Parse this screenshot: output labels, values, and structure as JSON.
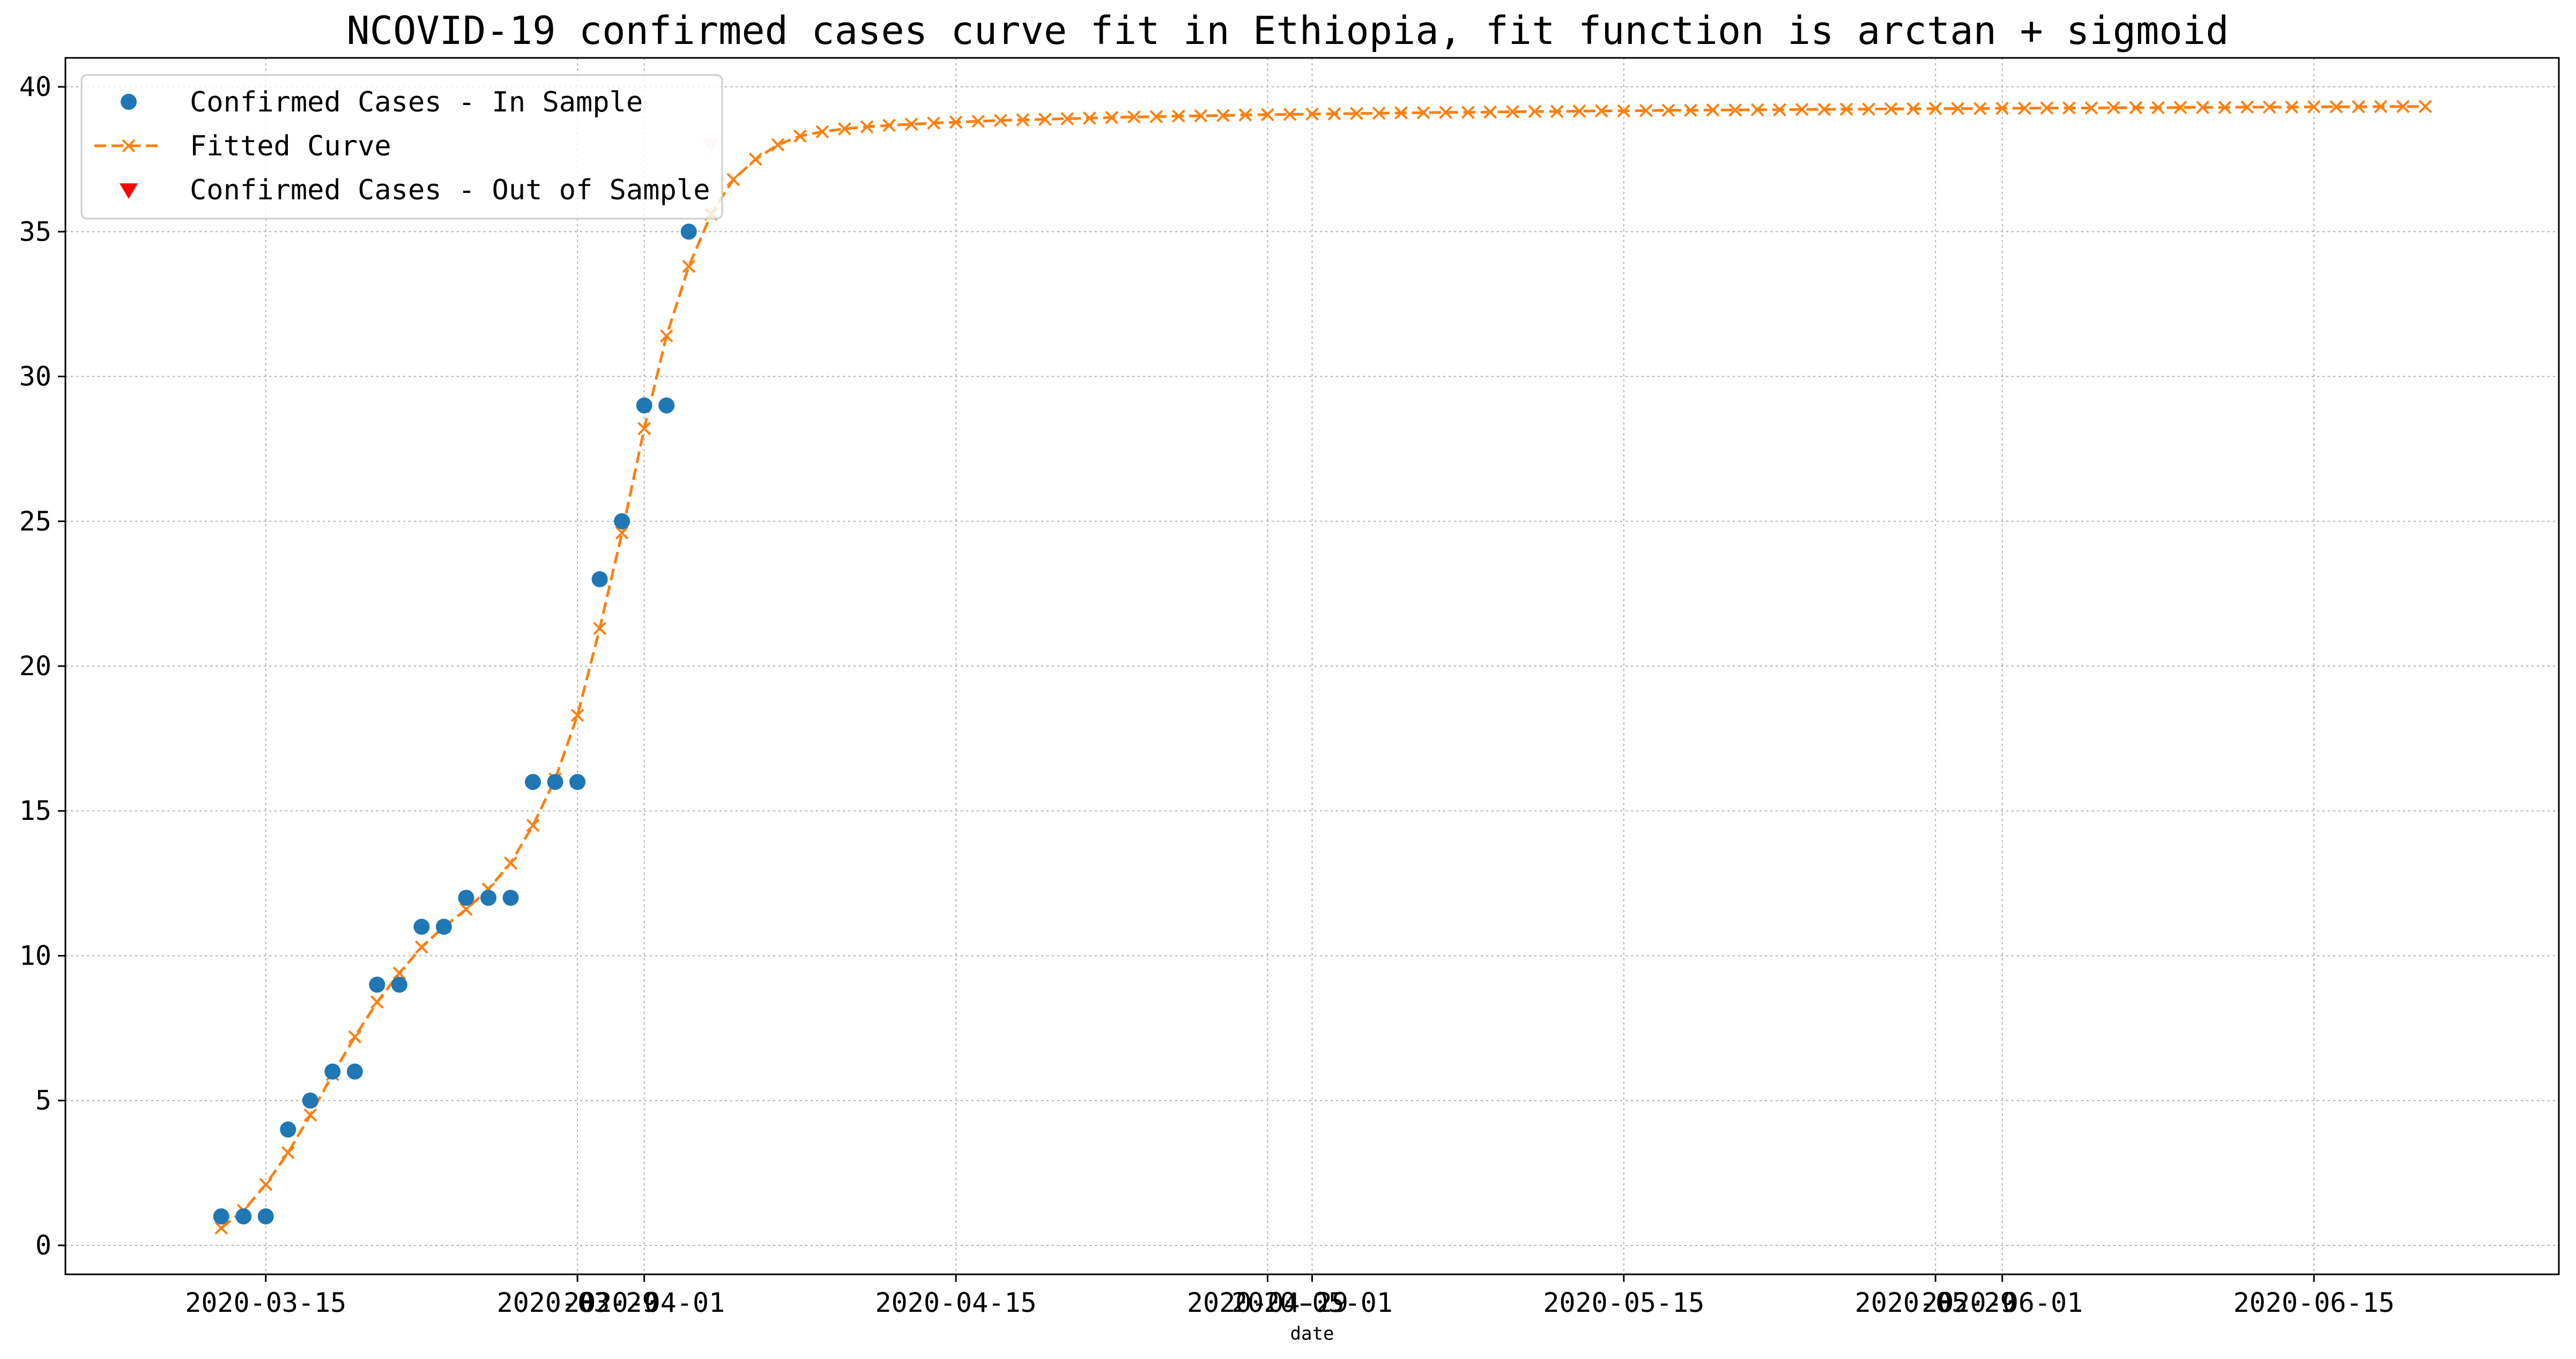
{
  "chart_data": {
    "type": "line",
    "title": "NCOVID-19 confirmed cases curve fit in Ethiopia, fit function is arctan + sigmoid",
    "xlabel": "date",
    "ylabel": "",
    "x_axis_type": "date",
    "xlim": [
      "2020-03-06",
      "2020-06-26"
    ],
    "ylim": [
      -1,
      41
    ],
    "grid": true,
    "legend_position": "top-left",
    "colors": {
      "in_sample": "#1f77b4",
      "fitted": "#ff7f0e",
      "out_of_sample": "#ff0000",
      "grid": "#b0b0b0"
    },
    "x_ticks": [
      {
        "date": "2020-03-15",
        "label": "2020-03-15"
      },
      {
        "date": "2020-03-29",
        "label": "2020-03-29"
      },
      {
        "date": "2020-04-01",
        "label": "2020-04-01"
      },
      {
        "date": "2020-04-15",
        "label": "2020-04-15"
      },
      {
        "date": "2020-04-29",
        "label": "2020-04-29"
      },
      {
        "date": "2020-05-01",
        "label": "2020-05-01"
      },
      {
        "date": "2020-05-15",
        "label": "2020-05-15"
      },
      {
        "date": "2020-05-29",
        "label": "2020-05-29"
      },
      {
        "date": "2020-06-01",
        "label": "2020-06-01"
      },
      {
        "date": "2020-06-15",
        "label": "2020-06-15"
      }
    ],
    "y_ticks": [
      0,
      5,
      10,
      15,
      20,
      25,
      30,
      35,
      40
    ],
    "series": [
      {
        "name": "Confirmed Cases - In Sample",
        "style": "marker-circle",
        "points": [
          [
            "2020-03-13",
            1
          ],
          [
            "2020-03-14",
            1
          ],
          [
            "2020-03-15",
            1
          ],
          [
            "2020-03-16",
            4
          ],
          [
            "2020-03-17",
            5
          ],
          [
            "2020-03-18",
            6
          ],
          [
            "2020-03-19",
            6
          ],
          [
            "2020-03-20",
            9
          ],
          [
            "2020-03-21",
            9
          ],
          [
            "2020-03-22",
            11
          ],
          [
            "2020-03-23",
            11
          ],
          [
            "2020-03-24",
            12
          ],
          [
            "2020-03-25",
            12
          ],
          [
            "2020-03-26",
            12
          ],
          [
            "2020-03-27",
            16
          ],
          [
            "2020-03-28",
            16
          ],
          [
            "2020-03-29",
            16
          ],
          [
            "2020-03-30",
            23
          ],
          [
            "2020-03-31",
            25
          ],
          [
            "2020-04-01",
            29
          ],
          [
            "2020-04-02",
            29
          ],
          [
            "2020-04-03",
            35
          ]
        ]
      },
      {
        "name": "Fitted Curve",
        "style": "dashed-line-x",
        "points": [
          [
            "2020-03-13",
            0.6
          ],
          [
            "2020-03-14",
            1.2
          ],
          [
            "2020-03-15",
            2.1
          ],
          [
            "2020-03-16",
            3.2
          ],
          [
            "2020-03-17",
            4.5
          ],
          [
            "2020-03-18",
            5.9
          ],
          [
            "2020-03-19",
            7.2
          ],
          [
            "2020-03-20",
            8.4
          ],
          [
            "2020-03-21",
            9.4
          ],
          [
            "2020-03-22",
            10.3
          ],
          [
            "2020-03-23",
            11.0
          ],
          [
            "2020-03-24",
            11.6
          ],
          [
            "2020-03-25",
            12.3
          ],
          [
            "2020-03-26",
            13.2
          ],
          [
            "2020-03-27",
            14.5
          ],
          [
            "2020-03-28",
            16.1
          ],
          [
            "2020-03-29",
            18.3
          ],
          [
            "2020-03-30",
            21.3
          ],
          [
            "2020-03-31",
            24.6
          ],
          [
            "2020-04-01",
            28.2
          ],
          [
            "2020-04-02",
            31.4
          ],
          [
            "2020-04-03",
            33.8
          ],
          [
            "2020-04-04",
            35.6
          ],
          [
            "2020-04-05",
            36.8
          ],
          [
            "2020-04-06",
            37.5
          ],
          [
            "2020-04-07",
            38.0
          ],
          [
            "2020-04-08",
            38.3
          ],
          [
            "2020-04-09",
            38.45
          ],
          [
            "2020-04-10",
            38.55
          ],
          [
            "2020-04-11",
            38.62
          ],
          [
            "2020-04-12",
            38.67
          ],
          [
            "2020-04-13",
            38.71
          ],
          [
            "2020-04-14",
            38.75
          ],
          [
            "2020-04-15",
            38.78
          ],
          [
            "2020-04-16",
            38.81
          ],
          [
            "2020-04-17",
            38.84
          ],
          [
            "2020-04-18",
            38.86
          ],
          [
            "2020-04-19",
            38.88
          ],
          [
            "2020-04-20",
            38.9
          ],
          [
            "2020-04-21",
            38.92
          ],
          [
            "2020-04-22",
            38.94
          ],
          [
            "2020-04-23",
            38.96
          ],
          [
            "2020-04-24",
            38.97
          ],
          [
            "2020-04-25",
            38.99
          ],
          [
            "2020-04-26",
            39.0
          ],
          [
            "2020-04-27",
            39.01
          ],
          [
            "2020-04-28",
            39.03
          ],
          [
            "2020-04-29",
            39.04
          ],
          [
            "2020-04-30",
            39.05
          ],
          [
            "2020-05-01",
            39.06
          ],
          [
            "2020-05-02",
            39.07
          ],
          [
            "2020-05-03",
            39.08
          ],
          [
            "2020-05-04",
            39.09
          ],
          [
            "2020-05-05",
            39.1
          ],
          [
            "2020-05-06",
            39.11
          ],
          [
            "2020-05-07",
            39.12
          ],
          [
            "2020-05-08",
            39.12
          ],
          [
            "2020-05-09",
            39.13
          ],
          [
            "2020-05-10",
            39.14
          ],
          [
            "2020-05-11",
            39.15
          ],
          [
            "2020-05-12",
            39.15
          ],
          [
            "2020-05-13",
            39.16
          ],
          [
            "2020-05-14",
            39.17
          ],
          [
            "2020-05-15",
            39.17
          ],
          [
            "2020-05-16",
            39.18
          ],
          [
            "2020-05-17",
            39.19
          ],
          [
            "2020-05-18",
            39.19
          ],
          [
            "2020-05-19",
            39.2
          ],
          [
            "2020-05-20",
            39.2
          ],
          [
            "2020-05-21",
            39.21
          ],
          [
            "2020-05-22",
            39.21
          ],
          [
            "2020-05-23",
            39.22
          ],
          [
            "2020-05-24",
            39.22
          ],
          [
            "2020-05-25",
            39.23
          ],
          [
            "2020-05-26",
            39.23
          ],
          [
            "2020-05-27",
            39.24
          ],
          [
            "2020-05-28",
            39.24
          ],
          [
            "2020-05-29",
            39.25
          ],
          [
            "2020-05-30",
            39.25
          ],
          [
            "2020-05-31",
            39.25
          ],
          [
            "2020-06-01",
            39.26
          ],
          [
            "2020-06-02",
            39.26
          ],
          [
            "2020-06-03",
            39.27
          ],
          [
            "2020-06-04",
            39.27
          ],
          [
            "2020-06-05",
            39.27
          ],
          [
            "2020-06-06",
            39.28
          ],
          [
            "2020-06-07",
            39.28
          ],
          [
            "2020-06-08",
            39.28
          ],
          [
            "2020-06-09",
            39.29
          ],
          [
            "2020-06-10",
            39.29
          ],
          [
            "2020-06-11",
            39.29
          ],
          [
            "2020-06-12",
            39.3
          ],
          [
            "2020-06-13",
            39.3
          ],
          [
            "2020-06-14",
            39.3
          ],
          [
            "2020-06-15",
            39.31
          ],
          [
            "2020-06-16",
            39.31
          ],
          [
            "2020-06-17",
            39.31
          ],
          [
            "2020-06-18",
            39.32
          ],
          [
            "2020-06-19",
            39.32
          ],
          [
            "2020-06-20",
            39.32
          ]
        ]
      },
      {
        "name": "Confirmed Cases - Out of Sample",
        "style": "marker-triangle-down",
        "points": [
          [
            "2020-04-04",
            38
          ]
        ]
      }
    ]
  }
}
